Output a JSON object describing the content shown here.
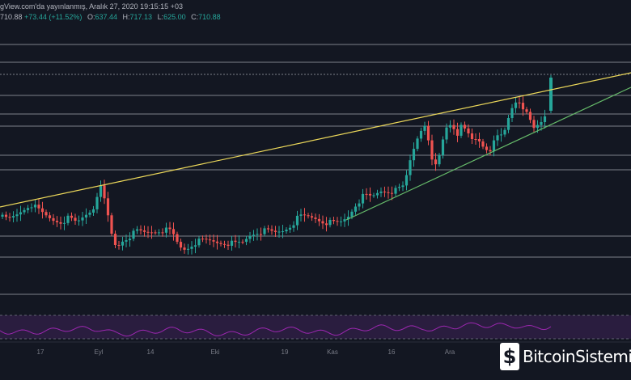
{
  "header": {
    "publish_line": "gView.com'da yayınlanmış, Aralık 27, 2020 19:15:15 +03",
    "price": "710.88",
    "change": "+73.44 (+11.52%)",
    "o_label": "O:",
    "o_value": "637.44",
    "h_label": "H:",
    "h_value": "717.13",
    "l_label": "L:",
    "l_value": "625.00",
    "c_label": "C:",
    "c_value": "710.88"
  },
  "brand": {
    "icon": "bitcoin-b-logo",
    "name": "BitcoinSistemi"
  },
  "colors": {
    "background": "#131722",
    "up": "#26a69a",
    "down": "#ef5350",
    "upper_trendline": "#ecd85a",
    "lower_trendline": "#66bb6a",
    "rsi": "#9c27b0",
    "rsi_band": "#2a1d3f",
    "horizontal_levels": "#d1d4dc"
  },
  "chart_data": {
    "type": "candlestick",
    "x_tick_labels": [
      "17",
      "Eyl",
      "14",
      "Eki",
      "19",
      "Kas",
      "16",
      "Ara"
    ],
    "grid": false,
    "horizontal_levels": 11,
    "last_candle": {
      "open": 637.44,
      "high": 717.13,
      "low": 625.0,
      "close": 710.88
    },
    "annotations": [
      "rising upper trendline",
      "rising lower trendline",
      "RSI sub-panel"
    ]
  }
}
